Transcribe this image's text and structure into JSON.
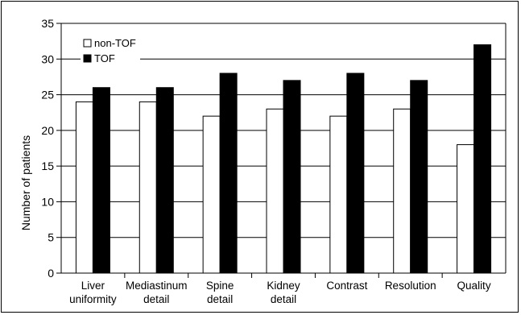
{
  "chart_data": {
    "type": "bar",
    "title": "",
    "xlabel": "",
    "ylabel": "Number of patients",
    "ylim": [
      0,
      35
    ],
    "yticks": [
      0,
      5,
      10,
      15,
      20,
      25,
      30,
      35
    ],
    "grid": true,
    "legend_position": "top-left",
    "categories": [
      [
        "Liver",
        "uniformity"
      ],
      [
        "Mediastinum",
        "detail"
      ],
      [
        "Spine",
        "detail"
      ],
      [
        "Kidney",
        "detail"
      ],
      [
        "Contrast"
      ],
      [
        "Resolution"
      ],
      [
        "Quality"
      ]
    ],
    "series": [
      {
        "name": "non-TOF",
        "color": "#ffffff",
        "values": [
          24,
          24,
          22,
          23,
          22,
          23,
          18
        ]
      },
      {
        "name": "TOF",
        "color": "#000000",
        "values": [
          26,
          26,
          28,
          27,
          28,
          27,
          32
        ]
      }
    ]
  }
}
